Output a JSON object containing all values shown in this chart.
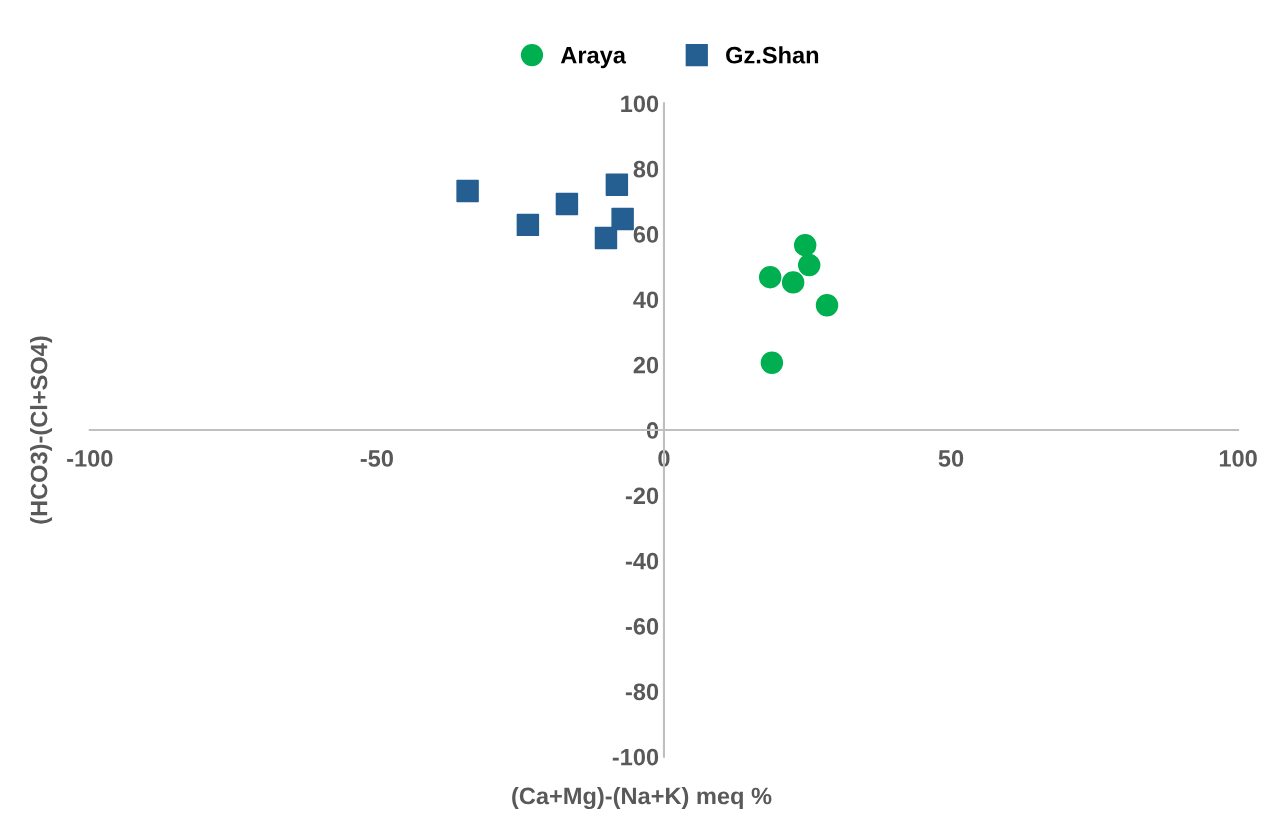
{
  "chart_data": {
    "type": "scatter",
    "xlabel": "(Ca+Mg)-(Na+K) meq %",
    "ylabel": "(HCO3)-(Cl+SO4)",
    "series": [
      {
        "name": "Araya",
        "color": "#00b050",
        "marker": "circle",
        "x": [
          24.6,
          25.3,
          18.5,
          22.5,
          28.4,
          18.8
        ],
        "values": [
          56.6,
          50.5,
          46.8,
          45.2,
          38.2,
          20.6
        ]
      },
      {
        "name": "Gz.Shan",
        "color": "#255e91",
        "marker": "square",
        "x": [
          -34.2,
          -23.7,
          -16.9,
          -8.2,
          -7.2,
          -10.1
        ],
        "values": [
          73.2,
          62.8,
          69.2,
          75.1,
          64.6,
          58.8
        ]
      }
    ],
    "xlim": [
      -100,
      100
    ],
    "ylim": [
      -100,
      100
    ],
    "xticks": [
      -100,
      -50,
      0,
      50,
      100
    ],
    "yticks": [
      -100,
      -80,
      -60,
      -40,
      -20,
      0,
      20,
      40,
      60,
      80,
      100
    ],
    "grid": false,
    "legend": "top"
  }
}
